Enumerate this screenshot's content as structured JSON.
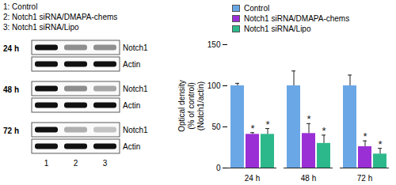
{
  "blot": {
    "legend_lines": [
      "1: Control",
      "2: Notch1 siRNA/DMAPA-chems",
      "3: Notch1 siRNA/Lipo"
    ],
    "times": [
      "24 h",
      "48 h",
      "72 h"
    ],
    "bands": [
      "Notch1",
      "Actin"
    ],
    "lanes": [
      1,
      2,
      3
    ]
  },
  "chart_data": {
    "type": "bar",
    "y_label": "Optical density\n(% of control)\n(Notch1/actin)",
    "categories": [
      "24 h",
      "48 h",
      "72 h"
    ],
    "series": [
      {
        "name": "Control",
        "color": "#6aa7e6",
        "values": [
          100,
          100,
          100
        ],
        "errors": [
          3,
          18,
          13
        ],
        "significance": [
          null,
          null,
          null
        ]
      },
      {
        "name": "Notch1 siRNA/DMAPA-chems",
        "color": "#9b2fd6",
        "values": [
          41,
          42,
          26
        ],
        "errors": [
          2,
          12,
          7
        ],
        "significance": [
          "*",
          "*",
          "*"
        ]
      },
      {
        "name": "Notch1 siRNA/Lipo",
        "color": "#2db88b",
        "values": [
          41,
          30,
          17
        ],
        "errors": [
          7,
          10,
          7
        ],
        "significance": [
          "*",
          "*",
          "*"
        ]
      }
    ],
    "ylim": [
      0,
      150
    ],
    "yticks": [
      0,
      50,
      100,
      150
    ],
    "grid": false,
    "legend": "top-left"
  }
}
